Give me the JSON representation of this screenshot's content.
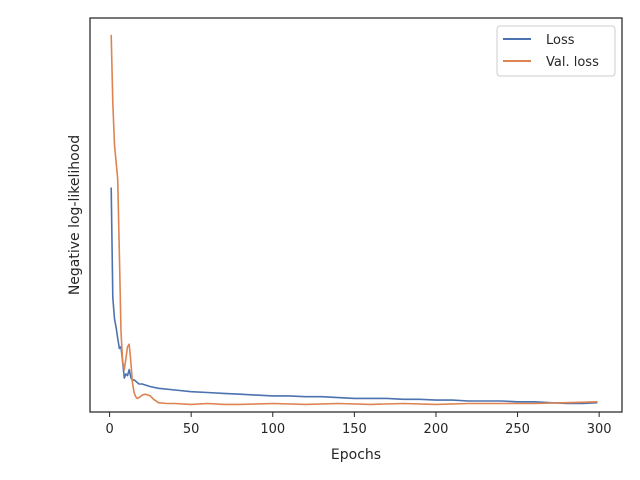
{
  "chart_data": {
    "type": "line",
    "title": "",
    "xlabel": "Epochs",
    "ylabel": "Negative log-likelihood",
    "xlim": [
      -12,
      314
    ],
    "ylim": [
      -0.05,
      4.6
    ],
    "xticks": [
      0,
      50,
      100,
      150,
      200,
      250,
      300
    ],
    "yticks_labeled": false,
    "grid": false,
    "legend_position": "top-right",
    "series": [
      {
        "name": "Loss",
        "color": "#4c72b0",
        "x": [
          1,
          2,
          3,
          4,
          5,
          6,
          7,
          8,
          9,
          10,
          11,
          12,
          13,
          14,
          15,
          18,
          20,
          25,
          30,
          40,
          50,
          60,
          70,
          80,
          90,
          100,
          110,
          120,
          130,
          140,
          150,
          160,
          170,
          180,
          190,
          200,
          210,
          220,
          230,
          240,
          250,
          260,
          270,
          280,
          290,
          299
        ],
        "y": [
          2.6,
          1.3,
          1.05,
          0.95,
          0.82,
          0.7,
          0.72,
          0.55,
          0.35,
          0.4,
          0.38,
          0.45,
          0.36,
          0.32,
          0.33,
          0.28,
          0.28,
          0.25,
          0.23,
          0.21,
          0.19,
          0.18,
          0.17,
          0.16,
          0.15,
          0.14,
          0.14,
          0.13,
          0.13,
          0.12,
          0.11,
          0.11,
          0.11,
          0.1,
          0.1,
          0.09,
          0.09,
          0.08,
          0.08,
          0.08,
          0.07,
          0.07,
          0.06,
          0.05,
          0.05,
          0.06
        ]
      },
      {
        "name": "Val. loss",
        "color": "#dd8452",
        "x": [
          1,
          2,
          3,
          4,
          5,
          6,
          7,
          8,
          9,
          10,
          11,
          12,
          13,
          14,
          15,
          16,
          17,
          18,
          20,
          22,
          25,
          27,
          30,
          35,
          40,
          50,
          60,
          70,
          80,
          100,
          120,
          140,
          160,
          180,
          200,
          220,
          240,
          260,
          280,
          299
        ],
        "y": [
          4.4,
          3.6,
          3.1,
          2.9,
          2.7,
          1.8,
          0.9,
          0.55,
          0.45,
          0.58,
          0.72,
          0.75,
          0.55,
          0.3,
          0.18,
          0.13,
          0.11,
          0.12,
          0.15,
          0.16,
          0.14,
          0.1,
          0.06,
          0.05,
          0.05,
          0.04,
          0.05,
          0.04,
          0.04,
          0.05,
          0.04,
          0.05,
          0.04,
          0.05,
          0.04,
          0.05,
          0.05,
          0.05,
          0.06,
          0.07
        ]
      }
    ]
  }
}
